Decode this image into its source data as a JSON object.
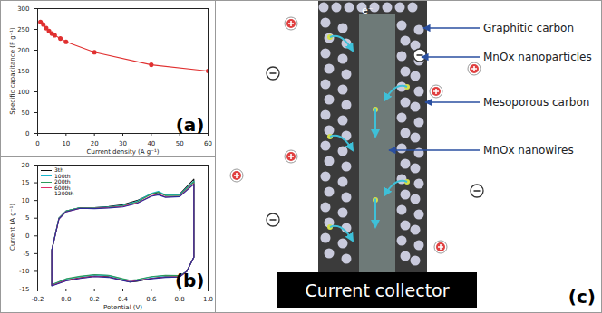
{
  "chart_data": [
    {
      "type": "line",
      "title": "(a)",
      "x_label": "Current density (A g⁻¹)",
      "y_label": "Specific capacitance (F g⁻¹)",
      "x": [
        1,
        2,
        3,
        4,
        5,
        6,
        8,
        10,
        20,
        40,
        60
      ],
      "series": [
        {
          "name": "Specific capacitance",
          "color": "#e03030",
          "marker": "circle",
          "values": [
            268,
            262,
            253,
            246,
            240,
            236,
            228,
            220,
            195,
            165,
            150
          ]
        }
      ],
      "xlim": [
        0,
        60
      ],
      "xticks": [
        0,
        10,
        20,
        30,
        40,
        50,
        60
      ],
      "ylim": [
        0,
        300
      ],
      "yticks": [
        0,
        50,
        100,
        150,
        200,
        250,
        300
      ]
    },
    {
      "type": "line",
      "title": "(b)",
      "x_label": "Potential (V)",
      "y_label": "Current (A g⁻¹)",
      "legend": "top-left",
      "x": [
        -0.1,
        -0.05,
        0,
        0.1,
        0.2,
        0.3,
        0.4,
        0.5,
        0.6,
        0.65,
        0.7,
        0.8,
        0.9,
        0.9,
        0.85,
        0.8,
        0.7,
        0.6,
        0.5,
        0.45,
        0.4,
        0.3,
        0.2,
        0.1,
        0,
        -0.1,
        -0.1
      ],
      "series": [
        {
          "name": "3th",
          "color": "#111111",
          "values": [
            -4,
            5,
            7,
            8,
            8,
            8.3,
            8.8,
            10,
            11.8,
            12.3,
            11.5,
            11.8,
            16,
            -6,
            -10,
            -11.5,
            -11.5,
            -12,
            -12.8,
            -13,
            -12.5,
            -11.5,
            -11.3,
            -11.8,
            -12.5,
            -14,
            -4
          ]
        },
        {
          "name": "100th",
          "color": "#19b8d0",
          "values": [
            -4,
            5,
            7,
            8,
            8,
            8.2,
            8.6,
            9.8,
            12,
            12.6,
            11.6,
            11.6,
            15.5,
            -6,
            -10,
            -11.3,
            -11.2,
            -11.6,
            -12.4,
            -12.6,
            -12.2,
            -11.2,
            -11,
            -11.5,
            -12.2,
            -13.8,
            -4
          ]
        },
        {
          "name": "200th",
          "color": "#2e9a5a",
          "values": [
            -4,
            5,
            7,
            8,
            7.9,
            8.1,
            8.5,
            9.6,
            11.8,
            12.4,
            11.4,
            11.4,
            15.3,
            -6,
            -10,
            -11.2,
            -11.1,
            -11.5,
            -12.3,
            -12.5,
            -12.1,
            -11.1,
            -10.9,
            -11.4,
            -12.1,
            -13.7,
            -4
          ]
        },
        {
          "name": "600th",
          "color": "#e0306a",
          "values": [
            -4,
            4.8,
            6.8,
            7.8,
            7.8,
            8,
            8.3,
            9.3,
            11.3,
            11.8,
            11,
            11.2,
            14.8,
            -6,
            -10,
            -11.5,
            -11.6,
            -12,
            -12.6,
            -12.9,
            -12.5,
            -11.6,
            -11.4,
            -11.9,
            -12.6,
            -14,
            -4
          ]
        },
        {
          "name": "1200th",
          "color": "#2b2b9a",
          "values": [
            -4,
            4.8,
            6.8,
            7.8,
            7.7,
            7.9,
            8.2,
            9.2,
            11.2,
            11.6,
            10.9,
            11.1,
            14.6,
            -6,
            -10,
            -11.6,
            -11.7,
            -12.1,
            -12.7,
            -13,
            -12.6,
            -11.7,
            -11.5,
            -12,
            -12.7,
            -14.1,
            -4
          ]
        }
      ],
      "xlim": [
        -0.2,
        1.0
      ],
      "xticks": [
        -0.2,
        {
          "value": 0,
          "label": "0.0"
        },
        0.2,
        0.4,
        0.6,
        0.8,
        {
          "value": 1,
          "label": "1.0"
        }
      ],
      "ylim": [
        -15,
        20
      ],
      "yticks": [
        -15,
        -10,
        -5,
        0,
        5,
        10,
        15,
        20
      ]
    }
  ],
  "diagram": {
    "panel_label": "(c)",
    "electron": "e⁻",
    "current_collector": "Current collector",
    "labels": [
      "Graphitic carbon",
      "MnOx nanoparticles",
      "Mesoporous carbon",
      "MnOx nanowires"
    ]
  }
}
